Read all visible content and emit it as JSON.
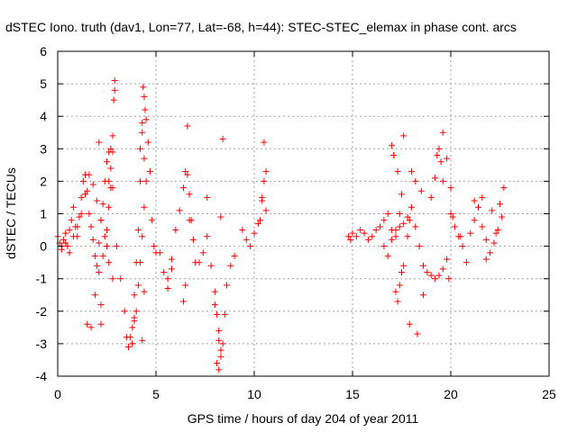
{
  "chart_data": {
    "type": "scatter",
    "title": "dSTEC Iono. truth (dav1, Lon=77, Lat=-68, h=44): STEC-STEC_elemax in phase cont. arcs",
    "xlabel": "GPS time / hours of day 204 of year 2011",
    "ylabel": "dSTEC  / TECUs",
    "xlim": [
      0,
      25
    ],
    "ylim": [
      -4,
      6
    ],
    "xticks": [
      0,
      5,
      10,
      15,
      20,
      25
    ],
    "xtick_labels": [
      "0",
      "5",
      "10",
      "15",
      "20",
      "25"
    ],
    "yticks": [
      -4,
      -3,
      -2,
      -1,
      0,
      1,
      2,
      3,
      4,
      5,
      6
    ],
    "ytick_labels": [
      "-4",
      "-3",
      "-2",
      "-1",
      "0",
      "1",
      "2",
      "3",
      "4",
      "5",
      "6"
    ],
    "grid": true,
    "marker": "plus",
    "color": "#ff0000",
    "series": [
      {
        "name": "dSTEC",
        "x": [
          0.0,
          0.1,
          0.2,
          0.3,
          0.4,
          0.5,
          0.6,
          0.7,
          0.8,
          0.9,
          1.0,
          1.1,
          1.2,
          1.3,
          1.4,
          1.5,
          1.6,
          1.7,
          1.8,
          1.9,
          2.0,
          2.1,
          2.2,
          2.3,
          2.4,
          2.5,
          2.6,
          2.7,
          2.8,
          0.2,
          0.4,
          0.6,
          0.8,
          1.0,
          1.2,
          1.4,
          1.6,
          1.8,
          2.0,
          2.2,
          2.4,
          2.6,
          2.8,
          3.0,
          1.5,
          1.7,
          1.9,
          2.1,
          2.3,
          2.5,
          2.6,
          2.7,
          2.8,
          2.8,
          2.85,
          2.9,
          2.9,
          2.7,
          2.6,
          2.5,
          2.2,
          2.2,
          2.1,
          3.2,
          3.4,
          3.5,
          3.6,
          3.8,
          3.9,
          4.0,
          4.1,
          4.2,
          4.3,
          4.35,
          4.4,
          4.45,
          4.5,
          4.6,
          4.7,
          4.8,
          4.9,
          5.0,
          3.8,
          3.9,
          4.0,
          4.1,
          4.2,
          4.3,
          4.4,
          4.5,
          4.2,
          4.3,
          4.4,
          4.3,
          4.4,
          3.9,
          3.8,
          3.7,
          5.2,
          5.4,
          5.6,
          5.8,
          6.0,
          6.2,
          6.4,
          6.5,
          6.6,
          6.7,
          6.8,
          6.9,
          7.0,
          6.4,
          6.5,
          6.7,
          6.6,
          5.8,
          5.6,
          7.2,
          7.4,
          7.6,
          7.8,
          8.0,
          8.1,
          8.2,
          8.3,
          8.4,
          8.5,
          8.6,
          8.8,
          9.0,
          8.1,
          8.2,
          8.3,
          8.0,
          8.2,
          8.4,
          7.6,
          8.3,
          9.4,
          9.6,
          9.8,
          10.0,
          10.2,
          10.4,
          10.5,
          10.6,
          10.5,
          10.4,
          10.6,
          10.3,
          14.8,
          14.9,
          15.0,
          15.2,
          15.4,
          15.6,
          15.8,
          16.0,
          16.2,
          16.4,
          16.6,
          16.8,
          17.0,
          17.2,
          17.4,
          17.6,
          17.8,
          16.6,
          16.8,
          17.0,
          17.2,
          17.4,
          17.5,
          17.3,
          17.1,
          17.6,
          17.2,
          17.3,
          17.4,
          17.5,
          17.6,
          17.8,
          17.9,
          18.0,
          18.2,
          18.4,
          18.6,
          18.8,
          19.0,
          19.2,
          19.4,
          19.6,
          19.8,
          19.0,
          19.2,
          19.3,
          19.4,
          19.5,
          19.6,
          19.9,
          18.3,
          18.6,
          20.0,
          20.2,
          20.4,
          20.6,
          20.8,
          21.0,
          21.2,
          21.4,
          21.6,
          21.8,
          22.0,
          22.2,
          22.4,
          22.6,
          22.7,
          22.5,
          22.3,
          21.8,
          22.1,
          20.5,
          21.2,
          21.6,
          19.6,
          19.8,
          20.0,
          20.1,
          18.0,
          18.2,
          18.5,
          17.9,
          17.0,
          17.1
        ],
        "y": [
          0.3,
          0.1,
          -0.1,
          0.2,
          0.4,
          0.0,
          0.5,
          0.8,
          1.2,
          0.6,
          0.3,
          0.9,
          1.5,
          2.0,
          2.2,
          1.7,
          1.0,
          0.6,
          0.2,
          -0.3,
          -0.6,
          0.1,
          0.8,
          1.3,
          2.0,
          2.6,
          2.9,
          2.4,
          1.8,
          0.0,
          0.1,
          -0.2,
          0.3,
          0.6,
          1.0,
          1.6,
          2.2,
          1.9,
          1.4,
          0.8,
          0.3,
          -0.5,
          -1.0,
          0.0,
          -2.4,
          -2.5,
          -1.5,
          -0.8,
          -0.3,
          0.5,
          1.2,
          1.8,
          2.9,
          3.4,
          4.5,
          5.1,
          4.8,
          3.0,
          2.0,
          0.0,
          -2.4,
          -1.8,
          3.2,
          -1.0,
          -2.0,
          -2.8,
          -3.1,
          -2.5,
          -1.5,
          -0.5,
          0.5,
          2.0,
          3.5,
          4.9,
          4.6,
          4.2,
          3.9,
          3.2,
          2.3,
          0.8,
          0.0,
          -0.2,
          -3.0,
          -2.3,
          -2.0,
          -1.2,
          -0.5,
          0.3,
          1.2,
          2.0,
          3.0,
          3.8,
          2.7,
          -2.9,
          -1.4,
          -2.2,
          -3.0,
          -2.8,
          -0.2,
          -0.8,
          -1.3,
          -0.7,
          0.5,
          1.1,
          1.8,
          2.3,
          2.2,
          1.6,
          0.8,
          0.2,
          -0.5,
          -1.7,
          -1.2,
          0.8,
          3.7,
          -0.4,
          -1.0,
          -0.5,
          -0.2,
          0.3,
          -0.6,
          -1.4,
          -2.1,
          -2.9,
          -3.2,
          -3.0,
          -2.1,
          -1.2,
          -0.6,
          -0.3,
          -3.6,
          -3.8,
          -3.4,
          -1.8,
          -2.6,
          3.3,
          1.5,
          0.9,
          0.5,
          0.2,
          0.0,
          0.4,
          0.7,
          1.4,
          2.0,
          2.3,
          3.2,
          1.5,
          1.1,
          0.8,
          0.3,
          0.2,
          0.4,
          0.3,
          0.5,
          0.4,
          0.2,
          0.3,
          0.5,
          0.6,
          0.8,
          1.0,
          0.5,
          0.3,
          0.6,
          0.7,
          0.9,
          0.0,
          -0.3,
          0.2,
          0.5,
          1.0,
          1.6,
          2.3,
          2.8,
          3.4,
          -1.4,
          -1.7,
          -1.2,
          -0.8,
          -0.6,
          0.3,
          0.8,
          1.2,
          0.6,
          0.0,
          -0.6,
          -0.8,
          -0.9,
          -1.0,
          -0.9,
          -0.7,
          -0.4,
          1.5,
          2.1,
          2.8,
          3.0,
          2.6,
          2.0,
          -1.0,
          -2.7,
          -1.5,
          1.0,
          0.6,
          0.3,
          0.0,
          -0.5,
          0.4,
          0.8,
          1.2,
          0.6,
          0.2,
          -0.2,
          0.1,
          0.5,
          0.9,
          1.8,
          1.3,
          0.4,
          -0.4,
          1.1,
          0.3,
          1.4,
          1.5,
          3.5,
          2.7,
          1.8,
          0.9,
          2.3,
          2.0,
          1.7,
          -2.4,
          3.1,
          2.8
        ]
      }
    ]
  }
}
